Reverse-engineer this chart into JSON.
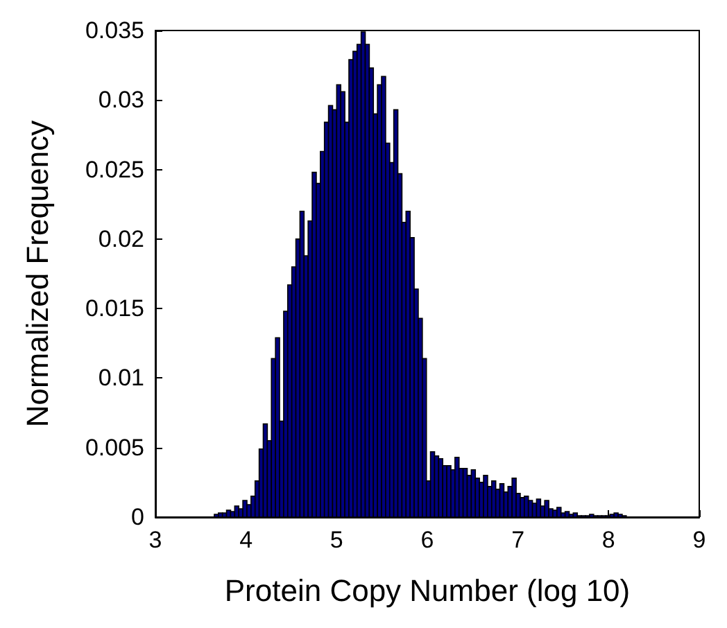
{
  "chart_data": {
    "type": "histogram",
    "xlabel": "Protein Copy Number (log 10)",
    "ylabel": "Normalized Frequency",
    "color": "#000080",
    "bins": [
      3.65,
      3.695,
      3.74,
      3.785,
      3.83,
      3.875,
      3.92,
      3.965,
      4.01,
      4.055,
      4.1,
      4.145,
      4.19,
      4.235,
      4.28,
      4.325,
      4.37,
      4.415,
      4.46,
      4.505,
      4.55,
      4.595,
      4.64,
      4.685,
      4.73,
      4.775,
      4.82,
      4.865,
      4.91,
      4.955,
      5.0,
      5.045,
      5.09,
      5.135,
      5.18,
      5.225,
      5.27,
      5.315,
      5.36,
      5.405,
      5.45,
      5.495,
      5.54,
      5.585,
      5.63,
      5.675,
      5.72,
      5.765,
      5.81,
      5.855,
      5.9,
      5.945,
      5.99,
      6.035,
      6.08,
      6.125,
      6.17,
      6.215,
      6.26,
      6.305,
      6.35,
      6.395,
      6.44,
      6.485,
      6.53,
      6.575,
      6.62,
      6.665,
      6.71,
      6.755,
      6.8,
      6.845,
      6.89,
      6.935,
      6.98,
      7.025,
      7.07,
      7.115,
      7.16,
      7.205,
      7.25,
      7.295,
      7.34,
      7.385,
      7.43,
      7.475,
      7.52,
      7.565,
      7.61,
      7.655,
      7.7,
      7.745,
      7.79,
      7.835,
      7.88,
      7.925,
      7.97,
      8.015,
      8.06,
      8.105,
      8.15,
      8.195
    ],
    "values": [
      0.0002,
      0.0003,
      0.0003,
      0.0005,
      0.0004,
      0.0008,
      0.0006,
      0.0012,
      0.0009,
      0.0015,
      0.0026,
      0.0049,
      0.0067,
      0.0055,
      0.0114,
      0.0129,
      0.0069,
      0.0148,
      0.0167,
      0.018,
      0.02,
      0.022,
      0.0188,
      0.0213,
      0.0248,
      0.024,
      0.0263,
      0.0284,
      0.0296,
      0.0293,
      0.0311,
      0.0306,
      0.0284,
      0.0329,
      0.0335,
      0.034,
      0.0349,
      0.034,
      0.0323,
      0.029,
      0.0311,
      0.0317,
      0.0269,
      0.0255,
      0.0293,
      0.0247,
      0.0212,
      0.022,
      0.0201,
      0.0164,
      0.0143,
      0.0114,
      0.0026,
      0.0047,
      0.0044,
      0.0042,
      0.0037,
      0.0037,
      0.0034,
      0.0043,
      0.0035,
      0.0035,
      0.003,
      0.0034,
      0.0028,
      0.0025,
      0.003,
      0.0022,
      0.0026,
      0.002,
      0.0024,
      0.0018,
      0.0022,
      0.0028,
      0.0017,
      0.0014,
      0.0015,
      0.0012,
      0.001,
      0.0013,
      0.0008,
      0.0012,
      0.0006,
      0.0005,
      0.0007,
      0.0003,
      0.0004,
      0.0002,
      0.0003,
      0.0001,
      0.0001,
      0.0001,
      0.0002,
      0.0001,
      0.0001,
      0.0001,
      0.0001,
      0.0002,
      0.0003,
      0.0002,
      0.0001
    ],
    "xlim": [
      3,
      9
    ],
    "xticks": [
      3,
      4,
      5,
      6,
      7,
      8,
      9
    ],
    "ylim": [
      0,
      0.035
    ],
    "yticks": [
      0,
      0.005,
      0.01,
      0.015,
      0.02,
      0.025,
      0.03,
      0.035
    ],
    "grid": false
  }
}
